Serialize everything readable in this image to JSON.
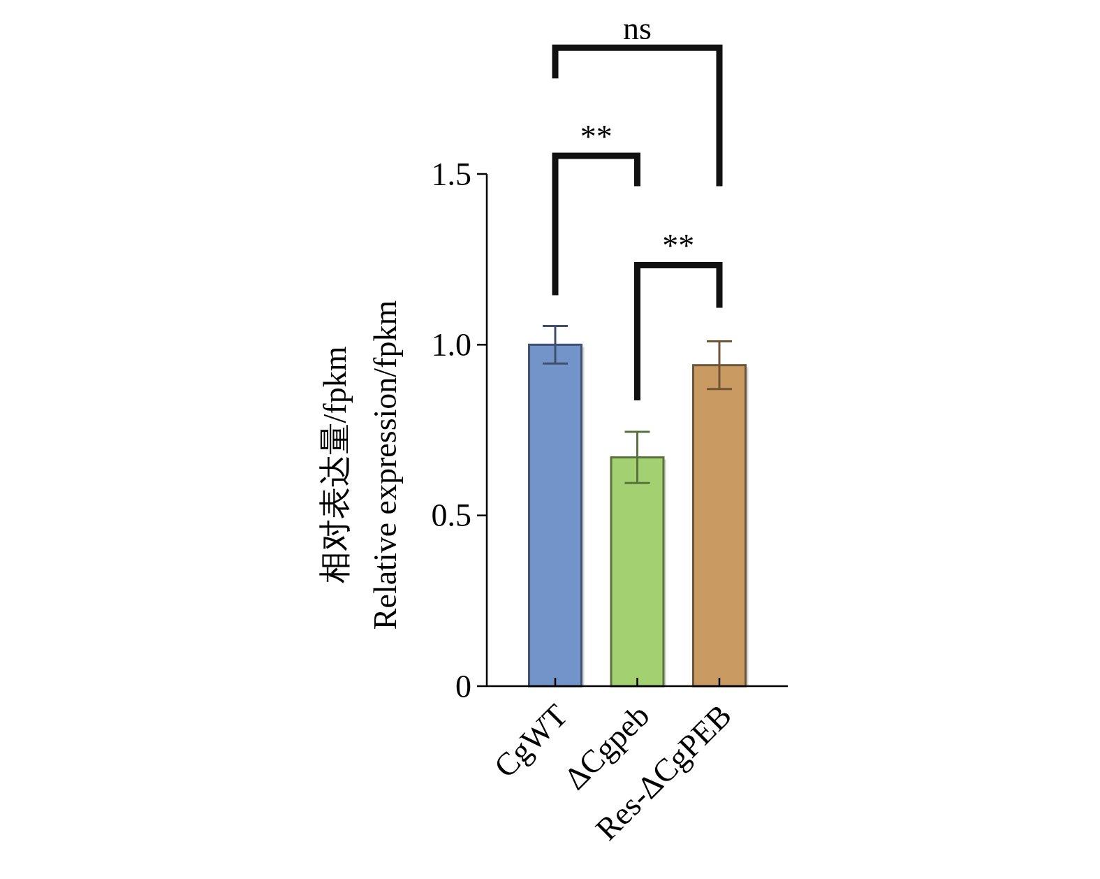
{
  "chart_data": {
    "type": "bar",
    "ylabel": "相对表达量/fpkm\nRelative expression/fpkm",
    "categories": [
      "CgWT",
      "ΔCgpeb",
      "Res-ΔCgPEB"
    ],
    "values": [
      1.0,
      0.67,
      0.94
    ],
    "errors": [
      0.055,
      0.075,
      0.07
    ],
    "colors": [
      "#7394c9",
      "#a3d171",
      "#c99a62"
    ],
    "ylim": [
      0,
      1.5
    ],
    "yticks": [
      0,
      0.5,
      {
        "value": 1,
        "label": "1.0"
      },
      1.5
    ],
    "annotations": [
      "**",
      "**",
      "ns"
    ],
    "grid": false
  }
}
